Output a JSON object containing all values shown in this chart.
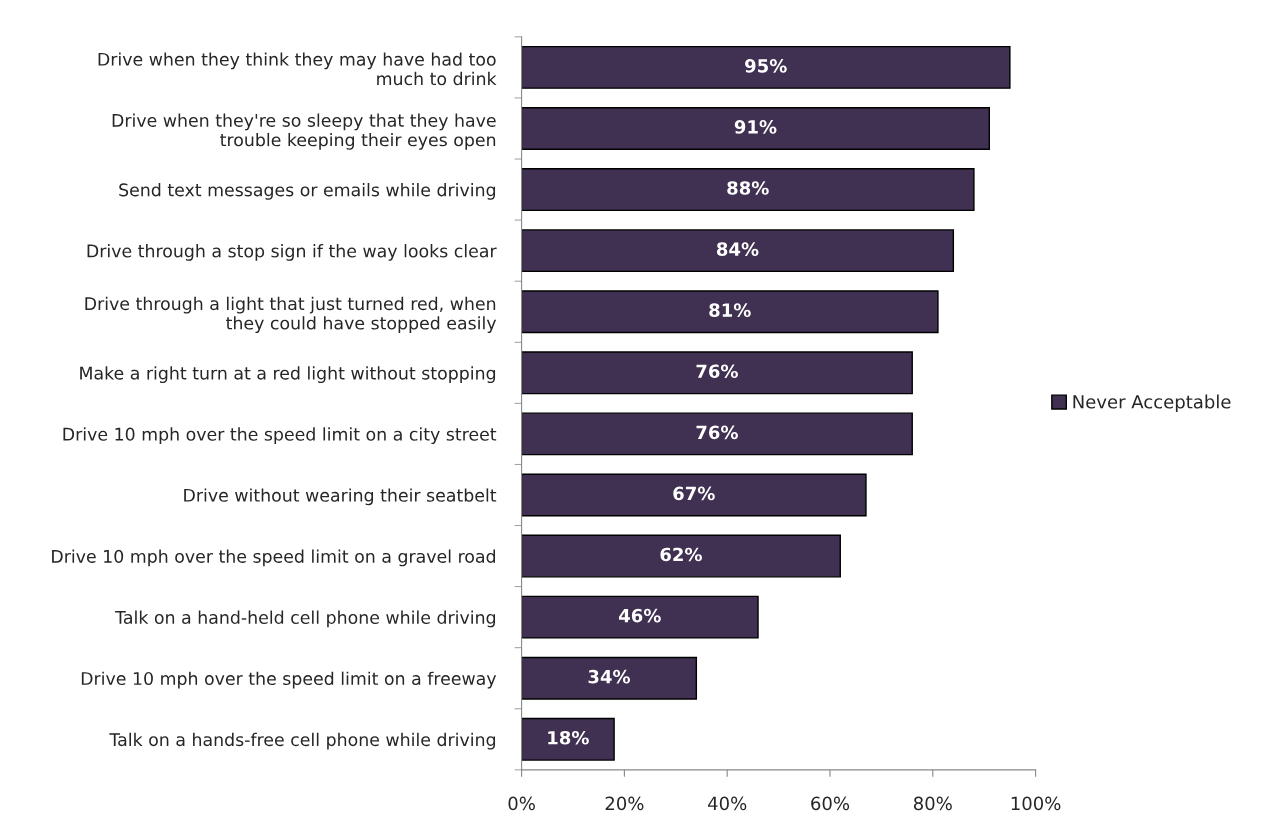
{
  "chart_data": {
    "type": "bar",
    "orientation": "horizontal",
    "legend": "right",
    "categories": [
      "Drive when they think they may have had too\nmuch to drink",
      "Drive when they're so sleepy that they have\ntrouble keeping their eyes open",
      "Send text messages or emails while driving",
      "Drive through a stop sign if the way looks clear",
      "Drive through a light that just turned red, when\nthey could have stopped easily",
      "Make a right turn at a red light without stopping",
      "Drive 10 mph over the speed limit on a city street",
      "Drive without wearing their seatbelt",
      "Drive 10 mph over the speed limit on a gravel road",
      "Talk on a hand-held cell phone while driving",
      "Drive 10 mph over the speed limit on a freeway",
      "Talk on a hands-free cell phone while driving"
    ],
    "series": [
      {
        "name": "Never Acceptable",
        "color": "#403152",
        "values": [
          95,
          91,
          88,
          84,
          81,
          76,
          76,
          67,
          62,
          46,
          34,
          18
        ],
        "value_labels": [
          "95%",
          "91%",
          "88%",
          "84%",
          "81%",
          "76%",
          "76%",
          "67%",
          "62%",
          "46%",
          "34%",
          "18%"
        ]
      }
    ],
    "xlim": [
      0,
      100
    ],
    "xticks": [
      {
        "value": 0,
        "label": "0%"
      },
      {
        "value": 20,
        "label": "20%"
      },
      {
        "value": 40,
        "label": "40%"
      },
      {
        "value": 60,
        "label": "60%"
      },
      {
        "value": 80,
        "label": "80%"
      },
      {
        "value": 100,
        "label": "100%"
      }
    ],
    "grid": false
  }
}
